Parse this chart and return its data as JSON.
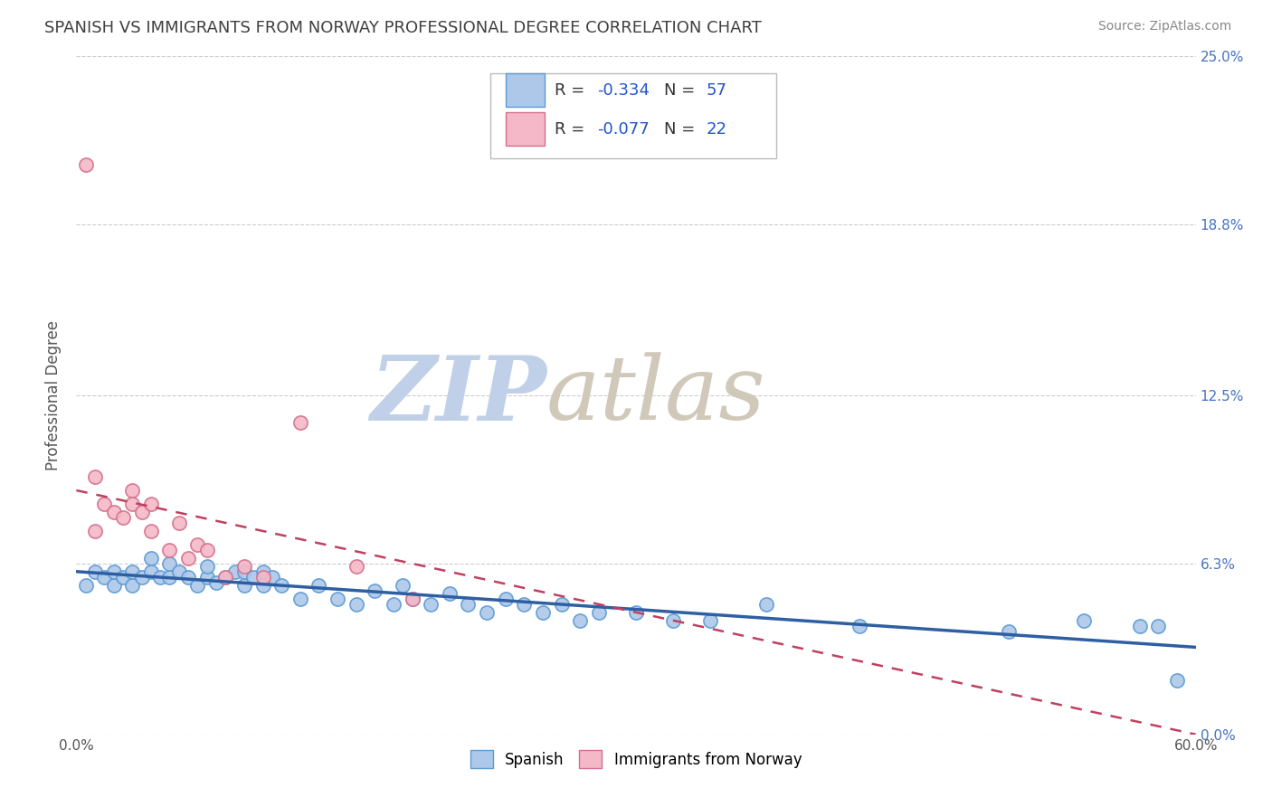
{
  "title": "SPANISH VS IMMIGRANTS FROM NORWAY PROFESSIONAL DEGREE CORRELATION CHART",
  "source_text": "Source: ZipAtlas.com",
  "ylabel": "Professional Degree",
  "xlim": [
    0.0,
    0.6
  ],
  "ylim": [
    0.0,
    0.25
  ],
  "xtick_values": [
    0.0,
    0.1,
    0.2,
    0.3,
    0.4,
    0.5,
    0.6
  ],
  "ytick_values": [
    0.0,
    0.063,
    0.125,
    0.188,
    0.25
  ],
  "series1_name": "Spanish",
  "series1_color": "#adc8e8",
  "series1_edge_color": "#5b9bd5",
  "series1_line_color": "#2e5fa3",
  "series1_R": -0.334,
  "series1_N": 57,
  "series2_name": "Immigrants from Norway",
  "series2_color": "#f4b8c8",
  "series2_edge_color": "#d4708a",
  "series2_line_color": "#c04060",
  "series2_R": -0.077,
  "series2_N": 22,
  "watermark_zip": "ZIP",
  "watermark_atlas": "atlas",
  "watermark_color_zip": "#c0d0e8",
  "watermark_color_atlas": "#d0c8b8",
  "background_color": "#ffffff",
  "grid_color": "#cccccc",
  "title_color": "#404040",
  "title_fontsize": 13,
  "right_tick_color": "#4472c4",
  "legend_R_color": "#2255cc",
  "spanish_x": [
    0.005,
    0.01,
    0.015,
    0.02,
    0.02,
    0.025,
    0.03,
    0.03,
    0.035,
    0.04,
    0.04,
    0.045,
    0.05,
    0.05,
    0.055,
    0.06,
    0.065,
    0.07,
    0.07,
    0.075,
    0.08,
    0.085,
    0.09,
    0.09,
    0.095,
    0.1,
    0.1,
    0.105,
    0.11,
    0.12,
    0.13,
    0.14,
    0.15,
    0.16,
    0.17,
    0.175,
    0.18,
    0.19,
    0.2,
    0.21,
    0.22,
    0.23,
    0.24,
    0.25,
    0.26,
    0.27,
    0.28,
    0.3,
    0.32,
    0.34,
    0.37,
    0.42,
    0.5,
    0.54,
    0.57,
    0.58,
    0.59
  ],
  "spanish_y": [
    0.055,
    0.06,
    0.058,
    0.055,
    0.06,
    0.058,
    0.055,
    0.06,
    0.058,
    0.065,
    0.06,
    0.058,
    0.058,
    0.063,
    0.06,
    0.058,
    0.055,
    0.058,
    0.062,
    0.056,
    0.058,
    0.06,
    0.055,
    0.06,
    0.058,
    0.055,
    0.06,
    0.058,
    0.055,
    0.05,
    0.055,
    0.05,
    0.048,
    0.053,
    0.048,
    0.055,
    0.05,
    0.048,
    0.052,
    0.048,
    0.045,
    0.05,
    0.048,
    0.045,
    0.048,
    0.042,
    0.045,
    0.045,
    0.042,
    0.042,
    0.048,
    0.04,
    0.038,
    0.042,
    0.04,
    0.04,
    0.02
  ],
  "norway_x": [
    0.005,
    0.01,
    0.01,
    0.015,
    0.02,
    0.025,
    0.03,
    0.03,
    0.035,
    0.04,
    0.04,
    0.05,
    0.055,
    0.06,
    0.065,
    0.07,
    0.08,
    0.09,
    0.1,
    0.12,
    0.15,
    0.18
  ],
  "norway_y": [
    0.21,
    0.095,
    0.075,
    0.085,
    0.082,
    0.08,
    0.09,
    0.085,
    0.082,
    0.085,
    0.075,
    0.068,
    0.078,
    0.065,
    0.07,
    0.068,
    0.058,
    0.062,
    0.058,
    0.115,
    0.062,
    0.05
  ],
  "norway_trend_x0": 0.0,
  "norway_trend_y0": 0.09,
  "norway_trend_x1": 0.6,
  "norway_trend_y1": 0.0
}
